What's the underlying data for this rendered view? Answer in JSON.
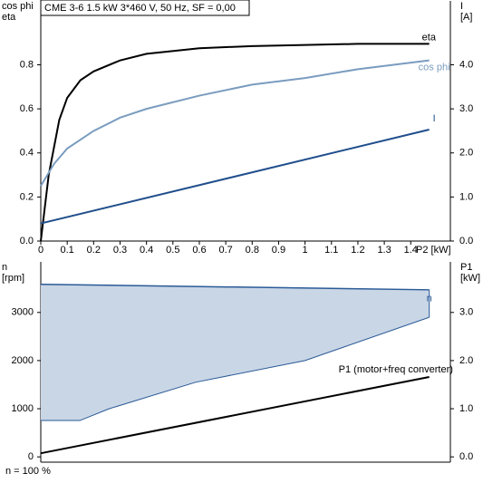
{
  "chart_data": [
    {
      "type": "line",
      "title": "CME 3-6   1.5 kW   3*460 V, 50 Hz, SF = 0,00",
      "ylabel_lines": [
        "cos phi",
        "eta"
      ],
      "y2label_lines": [
        "I",
        "[A]"
      ],
      "xlabel": "P2 [kW]",
      "xlim": [
        0,
        1.55
      ],
      "xticks": [
        0,
        0.1,
        0.2,
        0.3,
        0.4,
        0.5,
        0.6,
        0.7,
        0.8,
        0.9,
        1,
        1.1,
        1.2,
        1.3,
        1.4
      ],
      "ylim": [
        0,
        1.09
      ],
      "yticks": [
        {
          "value": 0,
          "label": "0.0"
        },
        0.2,
        0.4,
        0.6,
        0.8
      ],
      "y2lim": [
        0,
        5.45
      ],
      "y2ticks": [
        {
          "value": 0,
          "label": "0.0"
        },
        {
          "value": 1,
          "label": "1.0"
        },
        {
          "value": 2,
          "label": "2.0"
        },
        {
          "value": 3,
          "label": "3.0"
        },
        {
          "value": 4,
          "label": "4.0"
        }
      ],
      "series": [
        {
          "name": "eta",
          "color": "#000000",
          "x": [
            0,
            0.03,
            0.07,
            0.1,
            0.15,
            0.2,
            0.3,
            0.4,
            0.6,
            0.8,
            1.0,
            1.2,
            1.47
          ],
          "values": [
            0,
            0.3,
            0.55,
            0.65,
            0.73,
            0.77,
            0.82,
            0.85,
            0.875,
            0.885,
            0.89,
            0.895,
            0.895
          ]
        },
        {
          "name": "cos phi",
          "color": "#7a9cbf",
          "x": [
            0,
            0.05,
            0.1,
            0.2,
            0.3,
            0.4,
            0.6,
            0.8,
            1.0,
            1.2,
            1.47
          ],
          "values": [
            0.25,
            0.35,
            0.42,
            0.5,
            0.56,
            0.6,
            0.66,
            0.71,
            0.74,
            0.78,
            0.82
          ]
        },
        {
          "name": "I",
          "color": "#1f4e8c",
          "axis": "y2",
          "x": [
            0,
            1.47
          ],
          "values": [
            0.4,
            2.53
          ]
        }
      ]
    },
    {
      "type": "area-line",
      "ylabel_lines": [
        "n",
        "[rpm]"
      ],
      "y2label_lines": [
        "P1",
        "[kW]"
      ],
      "note": "n = 100 %",
      "xlim": [
        0,
        1.55
      ],
      "ylim": [
        -110,
        4050
      ],
      "yticks": [
        0,
        1000,
        2000,
        3000
      ],
      "y2lim": [
        -0.11,
        4.05
      ],
      "y2ticks": [
        {
          "value": 0,
          "label": "0.0"
        },
        {
          "value": 1,
          "label": "1.0"
        },
        {
          "value": 2,
          "label": "2.0"
        },
        {
          "value": 3,
          "label": "3.0"
        }
      ],
      "area": {
        "name": "n",
        "color": "#c9d6e6",
        "edge": "#2a5a96",
        "x_max": [
          0,
          1.47
        ],
        "max": [
          3585,
          3470
        ],
        "x_min": [
          0,
          0.148,
          0.259,
          0.586,
          1.0,
          1.47
        ],
        "min": [
          755,
          755,
          1000,
          1550,
          2000,
          2900
        ]
      },
      "series": [
        {
          "name": "P1 (motor+freq converter)",
          "color": "#000000",
          "axis": "y2",
          "x": [
            0,
            1.47
          ],
          "values": [
            0.075,
            1.66
          ]
        }
      ]
    }
  ]
}
